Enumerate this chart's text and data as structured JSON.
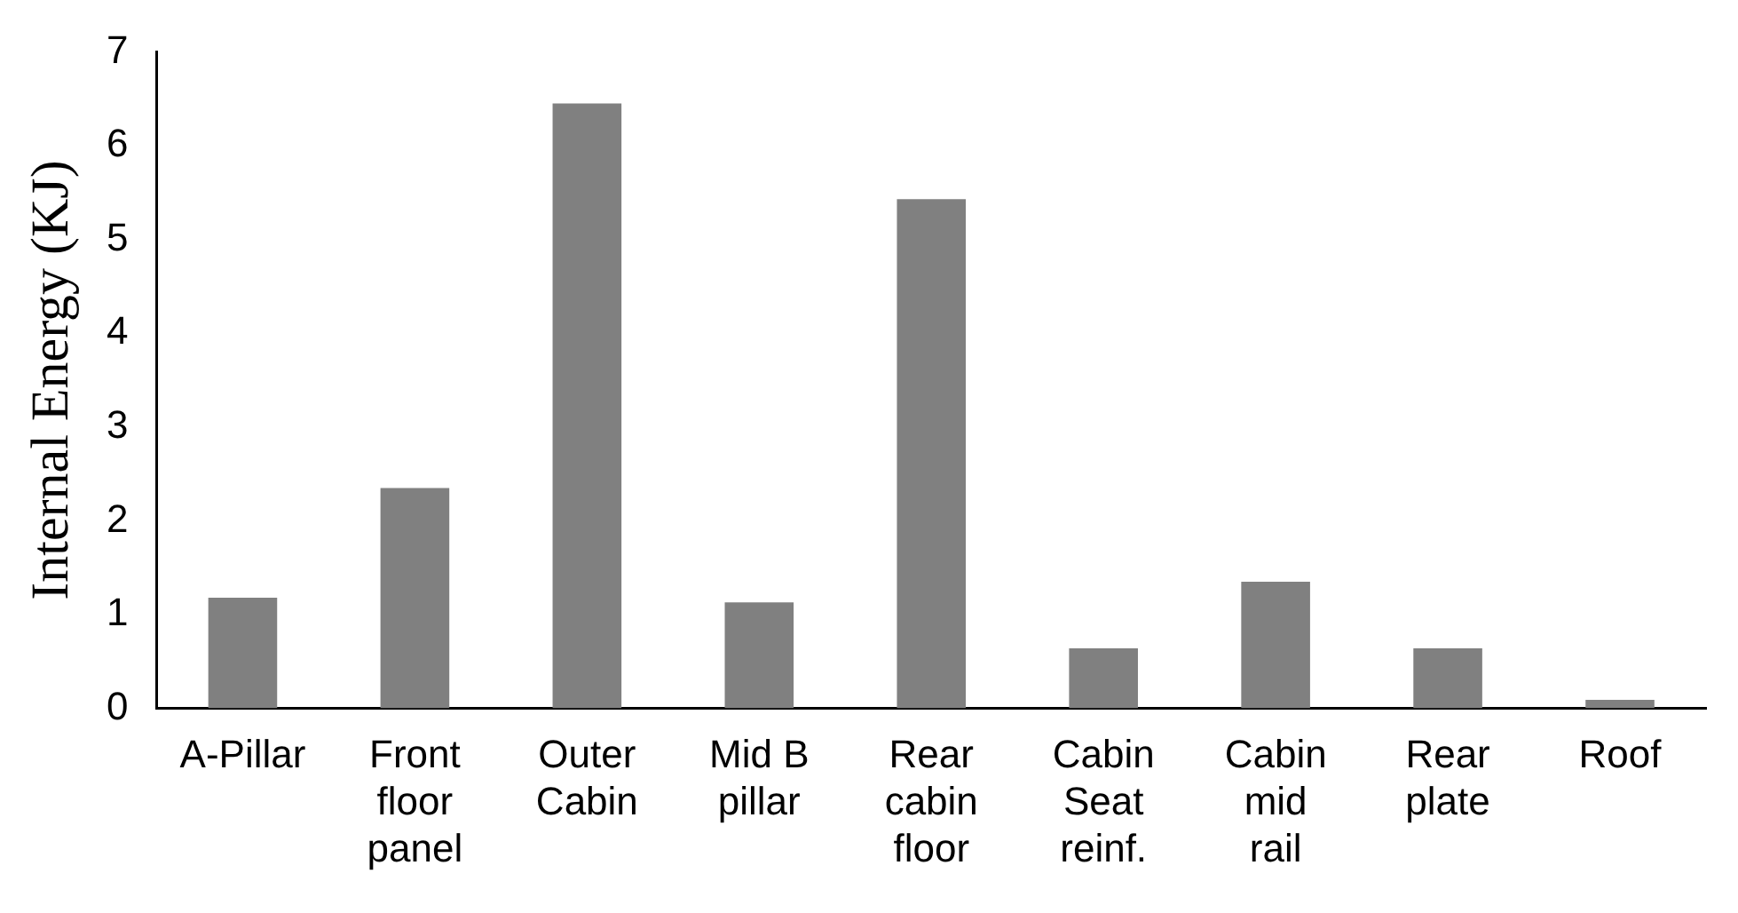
{
  "chart_data": {
    "type": "bar",
    "ylabel": "Internal Energy (KJ)",
    "categories": [
      "A-Pillar",
      "Front floor panel",
      "Outer Cabin",
      "Mid B pillar",
      "Rear cabin floor",
      "Cabin Seat reinf.",
      "Cabin mid rail",
      "Rear plate",
      "Roof"
    ],
    "values": [
      1.18,
      2.35,
      6.45,
      1.13,
      5.43,
      0.64,
      1.35,
      0.64,
      0.09
    ],
    "color": "#808080",
    "ylim": [
      0,
      7
    ],
    "yticks": [
      0,
      1,
      2,
      3,
      4,
      5,
      6,
      7
    ],
    "grid": false,
    "legend": false
  }
}
